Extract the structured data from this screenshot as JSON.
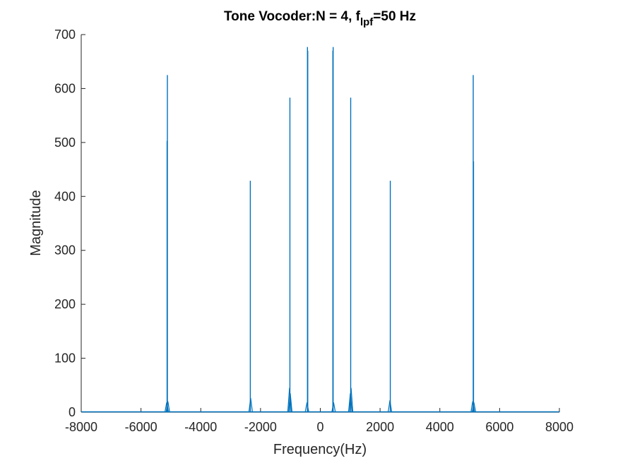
{
  "chart_data": {
    "type": "line",
    "title": {
      "main": "Tone Vocoder:N = 4, f",
      "subscript": "lpf",
      "suffix": "=50 Hz"
    },
    "xlabel": "Frequency(Hz)",
    "ylabel": "Magnitude",
    "xlim": [
      -8000,
      8000
    ],
    "ylim": [
      0,
      700
    ],
    "xticks": [
      -8000,
      -6000,
      -4000,
      -2000,
      0,
      2000,
      4000,
      6000,
      8000
    ],
    "xtick_labels": [
      "-8000",
      "-6000",
      "-4000",
      "-2000",
      "0",
      "2000",
      "4000",
      "6000",
      "8000"
    ],
    "yticks": [
      0,
      100,
      200,
      300,
      400,
      500,
      600,
      700
    ],
    "ytick_labels": [
      "0",
      "100",
      "200",
      "300",
      "400",
      "500",
      "600",
      "700"
    ],
    "grid": false,
    "line_color": "#0072BD",
    "peaks": [
      {
        "x": -5117,
        "y": 625
      },
      {
        "x": -5127,
        "y": 503
      },
      {
        "x": -2342,
        "y": 429
      },
      {
        "x": -1017,
        "y": 583
      },
      {
        "x": -430,
        "y": 677
      },
      {
        "x": -420,
        "y": 670
      },
      {
        "x": 420,
        "y": 670
      },
      {
        "x": 430,
        "y": 677
      },
      {
        "x": 1017,
        "y": 583
      },
      {
        "x": 2342,
        "y": 429
      },
      {
        "x": 5117,
        "y": 625
      },
      {
        "x": 5127,
        "y": 465
      }
    ],
    "minor_peaks": [
      {
        "x": -5140,
        "y": 18
      },
      {
        "x": -5100,
        "y": 20
      },
      {
        "x": -2330,
        "y": 26
      },
      {
        "x": -1030,
        "y": 45
      },
      {
        "x": -1005,
        "y": 35
      },
      {
        "x": -445,
        "y": 18
      },
      {
        "x": 445,
        "y": 18
      },
      {
        "x": 1005,
        "y": 35
      },
      {
        "x": 1030,
        "y": 45
      },
      {
        "x": 2330,
        "y": 22
      },
      {
        "x": 5100,
        "y": 20
      },
      {
        "x": 5140,
        "y": 18
      }
    ]
  }
}
